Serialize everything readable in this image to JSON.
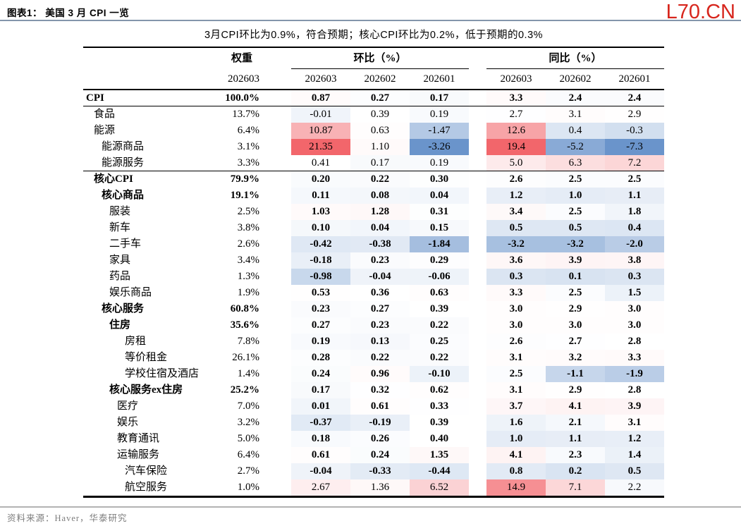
{
  "header": {
    "title": "图表1：  美国 3 月 CPI 一览",
    "brand": "L70.CN",
    "brand_color": "#D7261D"
  },
  "subtitle": "3月CPI环比为0.9%，符合预期；核心CPI环比为0.2%，低于预期的0.3%",
  "chart_data": {
    "type": "table",
    "title": "美国 3 月 CPI 一览",
    "column_groups": {
      "weight": "权重",
      "mom": "环比（%）",
      "yoy": "同比（%）"
    },
    "sub_headers": {
      "weight": "202603",
      "mom": [
        "202603",
        "202602",
        "202601"
      ],
      "yoy": [
        "202603",
        "202602",
        "202601"
      ]
    },
    "heatmap": {
      "red": "#F2666B",
      "blue": "#6A94CB",
      "mom_scale": {
        "min": -3.26,
        "mid": 0.35,
        "max": 21.35
      },
      "yoy_scale": {
        "min": -7.3,
        "mid": 2.75,
        "max": 19.4
      }
    },
    "rows": [
      {
        "label": "CPI",
        "indent": 0,
        "bold_label": true,
        "bold_values": true,
        "border_bottom": true,
        "weight": "100.0%",
        "mom": [
          "0.87",
          "0.27",
          "0.17"
        ],
        "yoy": [
          "3.3",
          "2.4",
          "2.4"
        ]
      },
      {
        "label": "食品",
        "indent": 1,
        "weight": "13.7%",
        "mom": [
          "-0.01",
          "0.39",
          "0.19"
        ],
        "yoy": [
          "2.7",
          "3.1",
          "2.9"
        ]
      },
      {
        "label": "能源",
        "indent": 1,
        "weight": "6.4%",
        "mom": [
          "10.87",
          "0.63",
          "-1.47"
        ],
        "yoy": [
          "12.6",
          "0.4",
          "-0.3"
        ]
      },
      {
        "label": "能源商品",
        "indent": 2,
        "weight": "3.1%",
        "mom": [
          "21.35",
          "1.10",
          "-3.26"
        ],
        "yoy": [
          "19.4",
          "-5.2",
          "-7.3"
        ]
      },
      {
        "label": "能源服务",
        "indent": 2,
        "border_bottom": true,
        "weight": "3.3%",
        "mom": [
          "0.41",
          "0.17",
          "0.19"
        ],
        "yoy": [
          "5.0",
          "6.3",
          "7.2"
        ]
      },
      {
        "label": "核心CPI",
        "indent": 1,
        "bold_label": true,
        "bold_values": true,
        "weight": "79.9%",
        "mom": [
          "0.20",
          "0.22",
          "0.30"
        ],
        "yoy": [
          "2.6",
          "2.5",
          "2.5"
        ]
      },
      {
        "label": "核心商品",
        "indent": 2,
        "bold_label": true,
        "bold_values": true,
        "weight": "19.1%",
        "mom": [
          "0.11",
          "0.08",
          "0.04"
        ],
        "yoy": [
          "1.2",
          "1.0",
          "1.1"
        ]
      },
      {
        "label": "服装",
        "indent": 3,
        "bold_values": true,
        "weight": "2.5%",
        "mom": [
          "1.03",
          "1.28",
          "0.31"
        ],
        "yoy": [
          "3.4",
          "2.5",
          "1.8"
        ]
      },
      {
        "label": "新车",
        "indent": 3,
        "bold_values": true,
        "weight": "3.8%",
        "mom": [
          "0.10",
          "0.04",
          "0.15"
        ],
        "yoy": [
          "0.5",
          "0.5",
          "0.4"
        ]
      },
      {
        "label": "二手车",
        "indent": 3,
        "bold_values": true,
        "weight": "2.6%",
        "mom": [
          "-0.42",
          "-0.38",
          "-1.84"
        ],
        "yoy": [
          "-3.2",
          "-3.2",
          "-2.0"
        ]
      },
      {
        "label": "家具",
        "indent": 3,
        "bold_values": true,
        "weight": "3.4%",
        "mom": [
          "-0.18",
          "0.23",
          "0.29"
        ],
        "yoy": [
          "3.6",
          "3.9",
          "3.8"
        ]
      },
      {
        "label": "药品",
        "indent": 3,
        "bold_values": true,
        "weight": "1.3%",
        "mom": [
          "-0.98",
          "-0.04",
          "-0.06"
        ],
        "yoy": [
          "0.3",
          "0.1",
          "0.3"
        ]
      },
      {
        "label": "娱乐商品",
        "indent": 3,
        "bold_values": true,
        "weight": "1.9%",
        "mom": [
          "0.53",
          "0.36",
          "0.63"
        ],
        "yoy": [
          "3.3",
          "2.5",
          "1.5"
        ]
      },
      {
        "label": "核心服务",
        "indent": 2,
        "bold_label": true,
        "bold_values": true,
        "weight": "60.8%",
        "mom": [
          "0.23",
          "0.27",
          "0.39"
        ],
        "yoy": [
          "3.0",
          "2.9",
          "3.0"
        ]
      },
      {
        "label": "住房",
        "indent": 3,
        "bold_label": true,
        "bold_values": true,
        "weight": "35.6%",
        "mom": [
          "0.27",
          "0.23",
          "0.22"
        ],
        "yoy": [
          "3.0",
          "3.0",
          "3.0"
        ]
      },
      {
        "label": "房租",
        "indent": 5,
        "bold_values": true,
        "weight": "7.8%",
        "mom": [
          "0.19",
          "0.13",
          "0.25"
        ],
        "yoy": [
          "2.6",
          "2.7",
          "2.8"
        ]
      },
      {
        "label": "等价租金",
        "indent": 5,
        "bold_values": true,
        "weight": "26.1%",
        "mom": [
          "0.28",
          "0.22",
          "0.22"
        ],
        "yoy": [
          "3.1",
          "3.2",
          "3.3"
        ]
      },
      {
        "label": "学校住宿及酒店",
        "indent": 5,
        "bold_values": true,
        "weight": "1.4%",
        "mom": [
          "0.24",
          "0.96",
          "-0.10"
        ],
        "yoy": [
          "2.5",
          "-1.1",
          "-1.9"
        ]
      },
      {
        "label": "核心服务ex住房",
        "indent": 3,
        "bold_label": true,
        "bold_values": true,
        "weight": "25.2%",
        "mom": [
          "0.17",
          "0.32",
          "0.62"
        ],
        "yoy": [
          "3.1",
          "2.9",
          "2.8"
        ]
      },
      {
        "label": "医疗",
        "indent": 4,
        "bold_values": true,
        "weight": "7.0%",
        "mom": [
          "0.01",
          "0.61",
          "0.33"
        ],
        "yoy": [
          "3.7",
          "4.1",
          "3.9"
        ]
      },
      {
        "label": "娱乐",
        "indent": 4,
        "bold_values": true,
        "weight": "3.2%",
        "mom": [
          "-0.37",
          "-0.19",
          "0.39"
        ],
        "yoy": [
          "1.6",
          "2.1",
          "3.1"
        ]
      },
      {
        "label": "教育通讯",
        "indent": 4,
        "bold_values": true,
        "weight": "5.0%",
        "mom": [
          "0.18",
          "0.26",
          "0.40"
        ],
        "yoy": [
          "1.0",
          "1.1",
          "1.2"
        ]
      },
      {
        "label": "运输服务",
        "indent": 4,
        "bold_values": true,
        "weight": "6.4%",
        "mom": [
          "0.61",
          "0.24",
          "1.35"
        ],
        "yoy": [
          "4.1",
          "2.3",
          "1.4"
        ]
      },
      {
        "label": "汽车保险",
        "indent": 5,
        "bold_values": true,
        "weight": "2.7%",
        "mom": [
          "-0.04",
          "-0.33",
          "-0.44"
        ],
        "yoy": [
          "0.8",
          "0.2",
          "0.5"
        ]
      },
      {
        "label": "航空服务",
        "indent": 5,
        "weight": "1.0%",
        "mom": [
          "2.67",
          "1.36",
          "6.52"
        ],
        "yoy": [
          "14.9",
          "7.1",
          "2.2"
        ]
      }
    ]
  },
  "footer": {
    "source": "资料来源：Haver，华泰研究"
  }
}
